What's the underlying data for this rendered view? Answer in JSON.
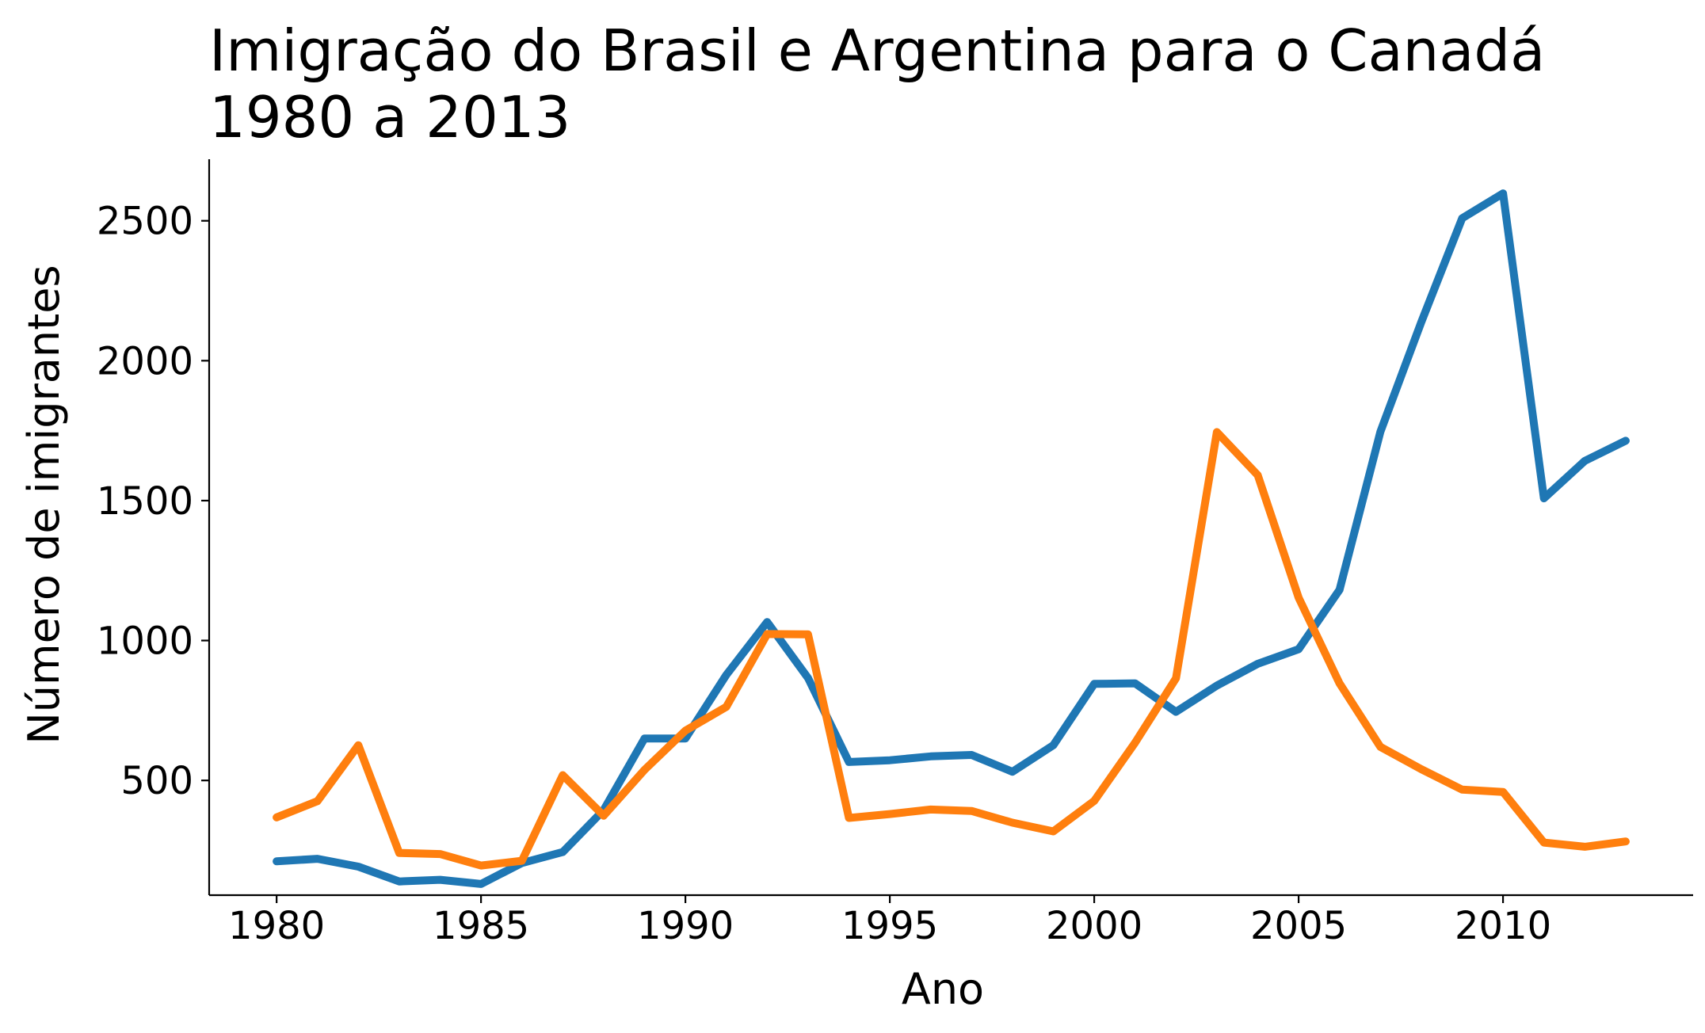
{
  "chart_data": {
    "type": "line",
    "title_line1": "Imigração do Brasil e Argentina para o Canadá",
    "title_line2": "1980 a 2013",
    "xlabel": "Ano",
    "ylabel": "Número de imigrantes",
    "x": [
      1980,
      1981,
      1982,
      1983,
      1984,
      1985,
      1986,
      1987,
      1988,
      1989,
      1990,
      1991,
      1992,
      1993,
      1994,
      1995,
      1996,
      1997,
      1998,
      1999,
      2000,
      2001,
      2002,
      2003,
      2004,
      2005,
      2006,
      2007,
      2008,
      2009,
      2010,
      2011,
      2012,
      2013
    ],
    "xlim": [
      1978.35,
      2014.65
    ],
    "ylim": [
      90,
      2720
    ],
    "x_ticks": [
      1980,
      1985,
      1990,
      1995,
      2000,
      2005,
      2010
    ],
    "y_ticks": [
      500,
      1000,
      1500,
      2000,
      2500
    ],
    "grid": false,
    "series": [
      {
        "color": "#1f77b4",
        "values": [
          211,
          220,
          192,
          139,
          145,
          130,
          205,
          244,
          394,
          650,
          650,
          877,
          1066,
          866,
          566,
          572,
          586,
          591,
          531,
          626,
          845,
          847,
          745,
          839,
          917,
          969,
          1181,
          1746,
          2138,
          2509,
          2598,
          1508,
          1642,
          1714
        ]
      },
      {
        "color": "#ff7f0e",
        "values": [
          368,
          426,
          626,
          241,
          237,
          196,
          213,
          519,
          374,
          538,
          678,
          763,
          1023,
          1022,
          366,
          380,
          396,
          391,
          349,
          318,
          427,
          635,
          865,
          1745,
          1591,
          1153,
          847,
          620,
          540,
          467,
          459,
          278,
          263,
          282
        ]
      }
    ]
  }
}
